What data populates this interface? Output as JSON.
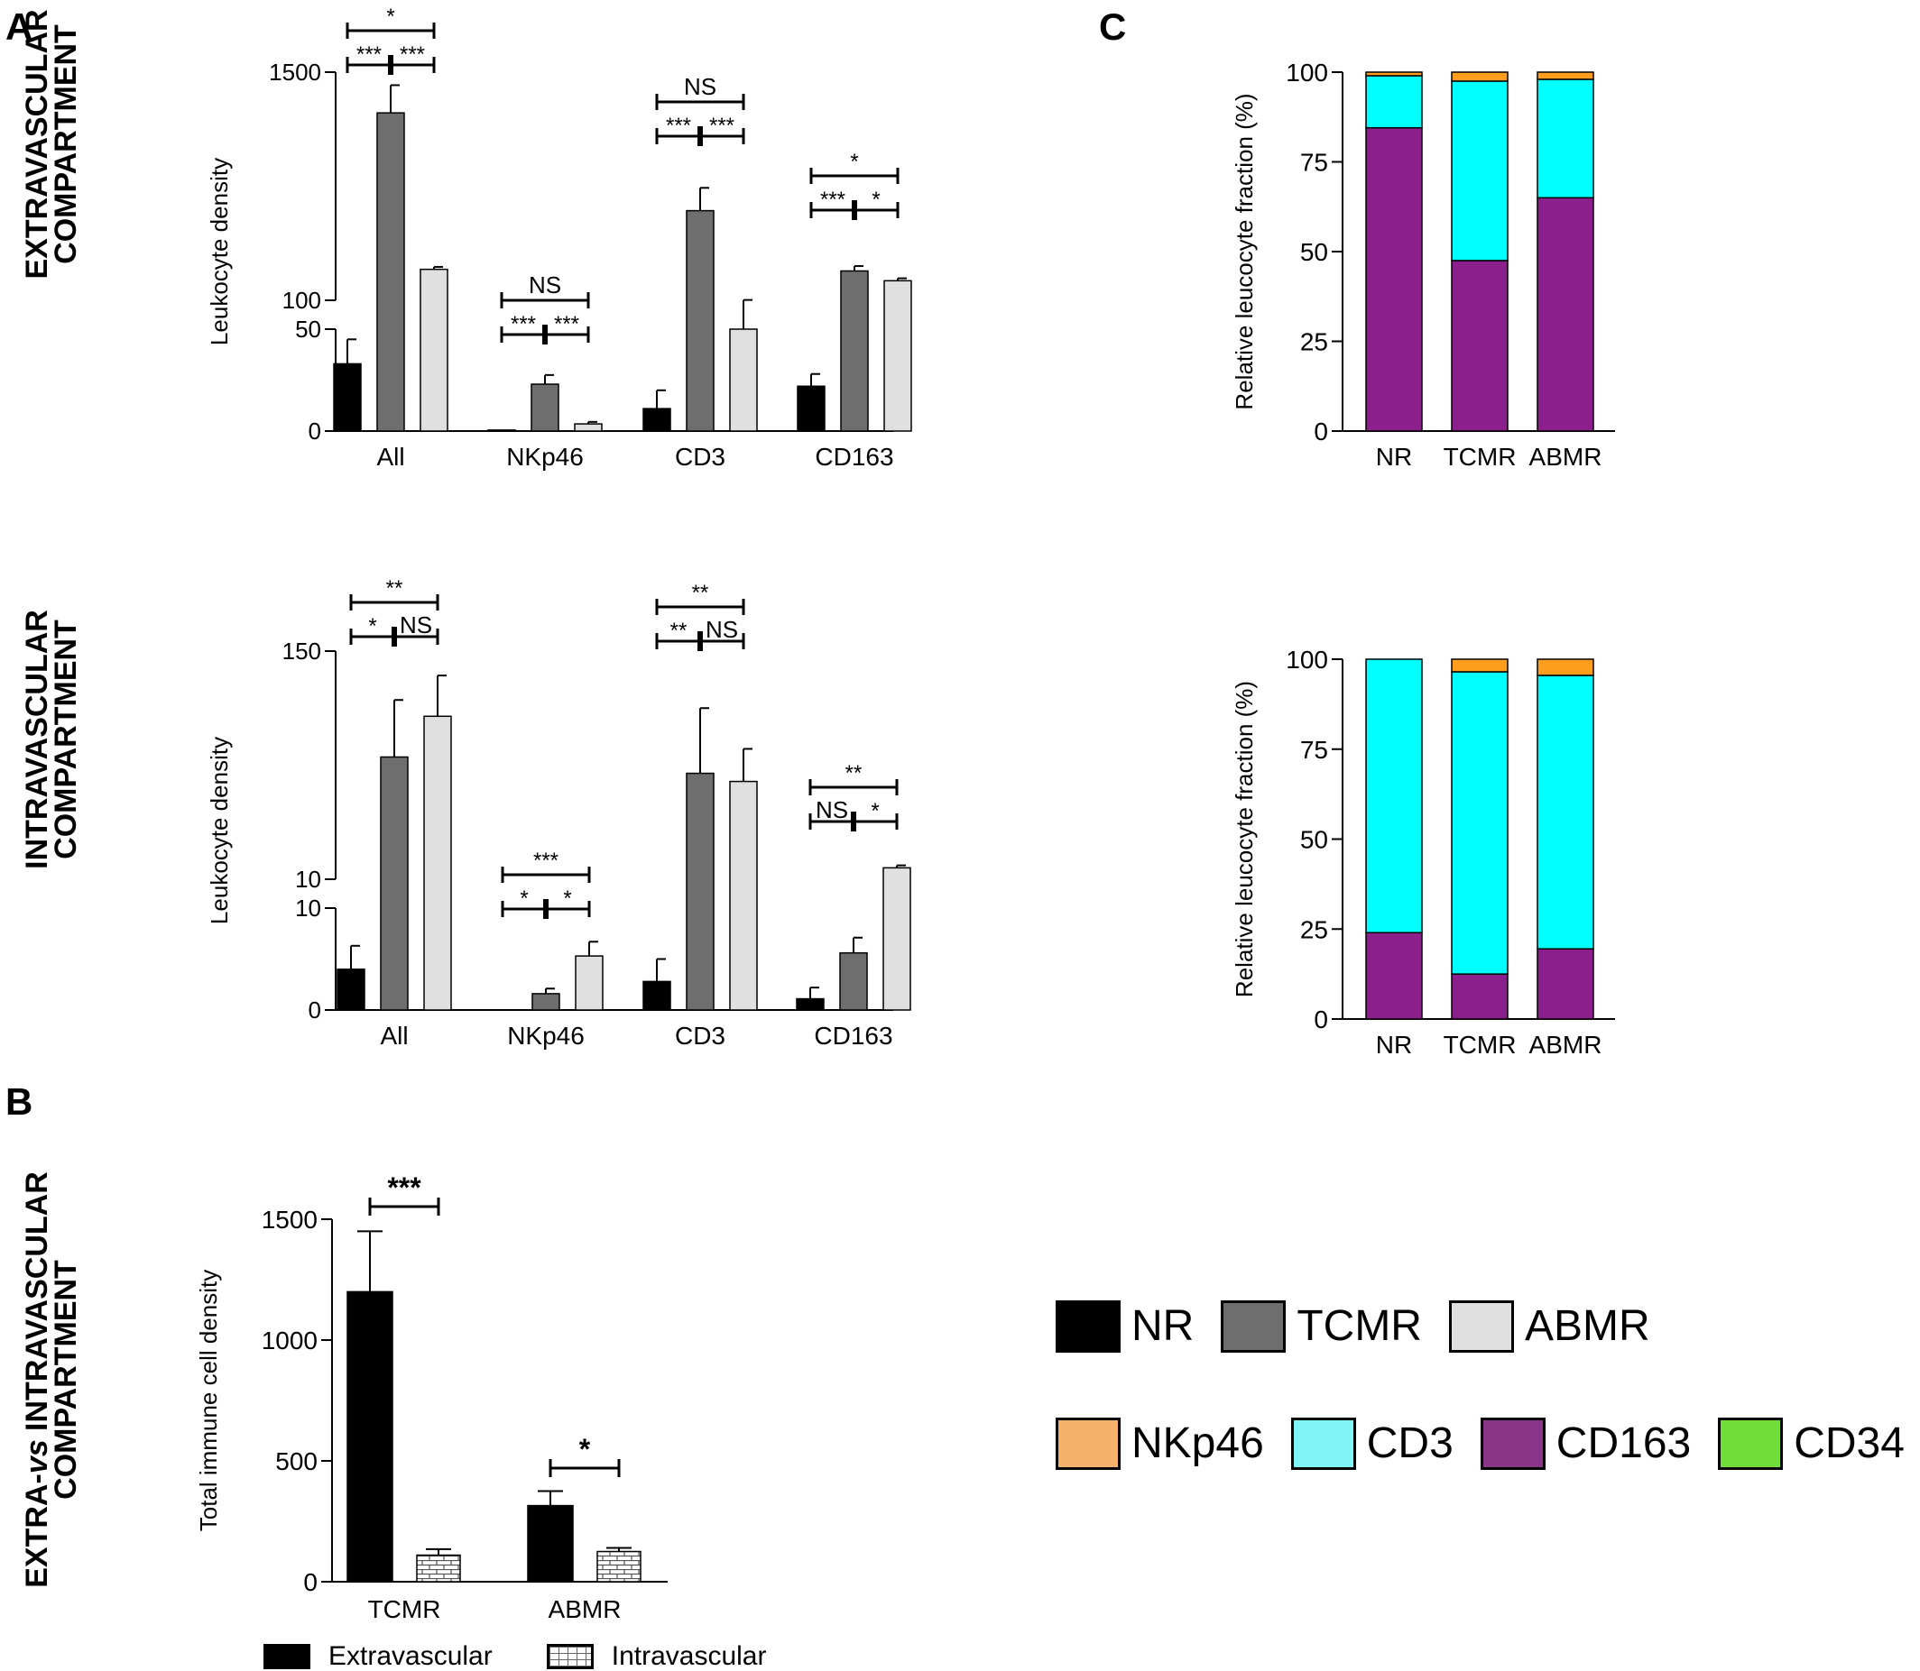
{
  "panel_labels": {
    "A": "A",
    "B": "B",
    "C": "C"
  },
  "row_titles": {
    "extra": [
      "EXTRAVASCULAR",
      "COMPARTMENT"
    ],
    "intra": [
      "INTRAVASCULAR",
      "COMPARTMENT"
    ],
    "comparison_line1_a": "EXTRA-",
    "comparison_line1_b": "vs",
    "comparison_line1_c": " INTRAVASCULAR",
    "comparison_line2": "COMPARTMENT"
  },
  "colors": {
    "NR": "#000000",
    "TCMR": "#6e6e6e",
    "ABMR": "#e0e0e0",
    "NKp46": "#f5b26b",
    "CD3": "#00f4f4",
    "CD163": "#8b1f8b",
    "CD34": "#6fde3a",
    "NKp46_bar": "#ff9e1e",
    "CD3_bar": "#00ffff",
    "CD163_bar": "#8b1f8b"
  },
  "legend_groups": [
    {
      "label": "NR",
      "color": "#000000"
    },
    {
      "label": "TCMR",
      "color": "#6e6e6e"
    },
    {
      "label": "ABMR",
      "color": "#e0e0e0"
    }
  ],
  "legend_stains": [
    {
      "label": "NKp46",
      "color": "#f5b26b"
    },
    {
      "label": "CD3",
      "color": "#7ff5f8"
    },
    {
      "label": "CD163",
      "color": "#8b3589"
    },
    {
      "label": "CD34",
      "color": "#6fde3a"
    }
  ],
  "legend_compartment": [
    {
      "label": "Extravascular",
      "pattern": "solid"
    },
    {
      "label": "Intravascular",
      "pattern": "brick"
    }
  ],
  "chart_data": [
    {
      "id": "A-extravascular",
      "type": "bar",
      "ylabel": "Leukocyte density",
      "y_axis_break": true,
      "yticks_lower": [
        "0",
        "50"
      ],
      "yticks_upper": [
        "100",
        "1500"
      ],
      "ylim_lower": [
        0,
        100
      ],
      "ylim_upper": [
        100,
        1500
      ],
      "categories": [
        "All",
        "NKp46",
        "CD3",
        "CD163"
      ],
      "series": [
        {
          "name": "NR",
          "values": [
            66,
            1,
            22,
            44
          ],
          "errors": [
            24,
            0,
            18,
            12
          ]
        },
        {
          "name": "TCMR",
          "values": [
            1250,
            46,
            650,
            280
          ],
          "errors": [
            170,
            9,
            140,
            30
          ]
        },
        {
          "name": "ABMR",
          "values": [
            290,
            7,
            100,
            220
          ],
          "errors": [
            15,
            2,
            2,
            15
          ]
        }
      ],
      "significance": [
        {
          "category": "All",
          "top": "*",
          "left": "***",
          "right": "***"
        },
        {
          "category": "NKp46",
          "top": "NS",
          "left": "***",
          "right": "***"
        },
        {
          "category": "CD3",
          "top": "NS",
          "left": "***",
          "right": "***"
        },
        {
          "category": "CD163",
          "top": "*",
          "left": "***",
          "right": "*"
        }
      ]
    },
    {
      "id": "A-intravascular",
      "type": "bar",
      "ylabel": "Leukocyte density",
      "y_axis_break": true,
      "yticks_lower": [
        "0",
        "10"
      ],
      "yticks_upper": [
        "10",
        "150"
      ],
      "ylim_lower": [
        0,
        10
      ],
      "ylim_upper": [
        10,
        150
      ],
      "categories": [
        "All",
        "NKp46",
        "CD3",
        "CD163"
      ],
      "series": [
        {
          "name": "NR",
          "values": [
            4,
            0,
            2.8,
            1.1
          ],
          "errors": [
            2.3,
            0,
            2.2,
            1.1
          ]
        },
        {
          "name": "TCMR",
          "values": [
            85,
            1.6,
            75,
            5.6
          ],
          "errors": [
            35,
            0.5,
            40,
            1.5
          ]
        },
        {
          "name": "ABMR",
          "values": [
            110,
            5.3,
            70,
            17
          ],
          "errors": [
            25,
            1.4,
            20,
            1.5
          ]
        }
      ],
      "significance": [
        {
          "category": "All",
          "top": "**",
          "left": "*",
          "right": "NS"
        },
        {
          "category": "NKp46",
          "top": "***",
          "left": "*",
          "right": "*"
        },
        {
          "category": "CD3",
          "top": "**",
          "left": "**",
          "right": "NS"
        },
        {
          "category": "CD163",
          "top": "**",
          "left": "NS",
          "right": "*"
        }
      ]
    },
    {
      "id": "B",
      "type": "bar",
      "ylabel": "Total immune cell density",
      "yticks": [
        "0",
        "500",
        "1000",
        "1500"
      ],
      "ylim": [
        0,
        1500
      ],
      "categories": [
        "TCMR",
        "ABMR"
      ],
      "series": [
        {
          "name": "Extravascular",
          "values": [
            1200,
            315
          ],
          "errors": [
            250,
            60
          ]
        },
        {
          "name": "Intravascular",
          "values": [
            110,
            125
          ],
          "errors": [
            25,
            15
          ]
        }
      ],
      "significance": [
        {
          "category": "TCMR",
          "label": "***"
        },
        {
          "category": "ABMR",
          "label": "*"
        }
      ]
    },
    {
      "id": "C-extravascular",
      "type": "bar",
      "stacked": true,
      "ylabel": "Relative leucocyte fraction (%)",
      "yticks": [
        "0",
        "25",
        "50",
        "75",
        "100"
      ],
      "ylim": [
        0,
        100
      ],
      "categories": [
        "NR",
        "TCMR",
        "ABMR"
      ],
      "series": [
        {
          "name": "CD163",
          "values": [
            84.5,
            47.5,
            65
          ]
        },
        {
          "name": "CD3",
          "values": [
            14.5,
            50,
            33
          ]
        },
        {
          "name": "NKp46",
          "values": [
            1,
            2.5,
            2
          ]
        }
      ]
    },
    {
      "id": "C-intravascular",
      "type": "bar",
      "stacked": true,
      "ylabel": "Relative leucocyte fraction (%)",
      "yticks": [
        "0",
        "25",
        "50",
        "75",
        "100"
      ],
      "ylim": [
        0,
        100
      ],
      "categories": [
        "NR",
        "TCMR",
        "ABMR"
      ],
      "series": [
        {
          "name": "CD163",
          "values": [
            24,
            12.5,
            19.5
          ]
        },
        {
          "name": "CD3",
          "values": [
            76,
            84,
            76
          ]
        },
        {
          "name": "NKp46",
          "values": [
            0,
            3.5,
            4.5
          ]
        }
      ]
    }
  ]
}
